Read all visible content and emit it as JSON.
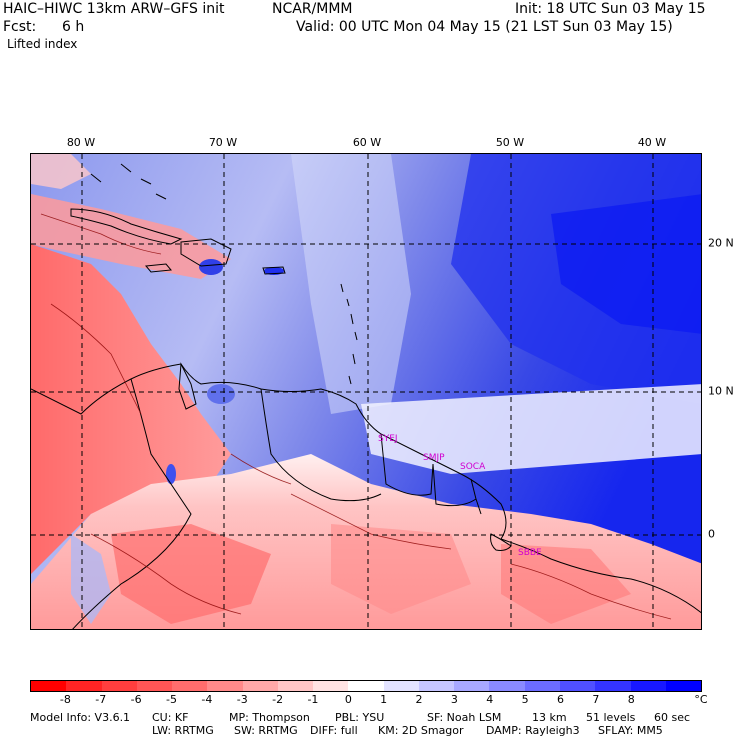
{
  "header": {
    "model": "HAIC–HIWC 13km ARW–GFS init",
    "org": "NCAR/MMM",
    "init": "Init: 18 UTC Sun 03 May 15",
    "fcst_label": "Fcst:",
    "fcst_value": "6 h",
    "valid": "Valid: 00 UTC Mon 04 May 15 (21 LST Sun 03 May 15)",
    "field": "Lifted index"
  },
  "map": {
    "lon_labels": [
      "80 W",
      "70 W",
      "60 W",
      "50 W",
      "40 W"
    ],
    "lat_labels": [
      "20 N",
      "10 N",
      "0"
    ],
    "stations": [
      "SYEJ",
      "SMJP",
      "SOCA",
      "SBBE"
    ],
    "colors": {
      "ocean_stable": "#3040e0",
      "land_unstable": "#ff5a5a",
      "grid": "#000000",
      "station": "#d000d0"
    }
  },
  "colorbar": {
    "labels": [
      "-8",
      "-7",
      "-6",
      "-5",
      "-4",
      "-3",
      "-2",
      "-1",
      "0",
      "1",
      "2",
      "3",
      "4",
      "5",
      "6",
      "7",
      "8"
    ],
    "unit": "°C",
    "colors": [
      "#ff0000",
      "#ff2424",
      "#ff3e3e",
      "#ff5656",
      "#ff6d6d",
      "#ff8a8a",
      "#ffa8a8",
      "#ffc6c6",
      "#ffe3e3",
      "#ffffff",
      "#e3e3ff",
      "#c6c6ff",
      "#a8a8ff",
      "#8a8aff",
      "#6c6cff",
      "#5050ff",
      "#3434ff",
      "#1818ff",
      "#0000ff"
    ]
  },
  "footer": {
    "line1": [
      "Model Info: V3.6.1",
      "CU: KF",
      "MP: Thompson",
      "PBL: YSU",
      "SF: Noah LSM",
      "13 km",
      "51 levels",
      "60 sec"
    ],
    "line2": [
      "LW: RRTMG",
      "SW: RRTMG",
      "DIFF: full",
      "KM: 2D Smagor",
      "DAMP: Rayleigh3",
      "SFLAY: MM5"
    ]
  }
}
